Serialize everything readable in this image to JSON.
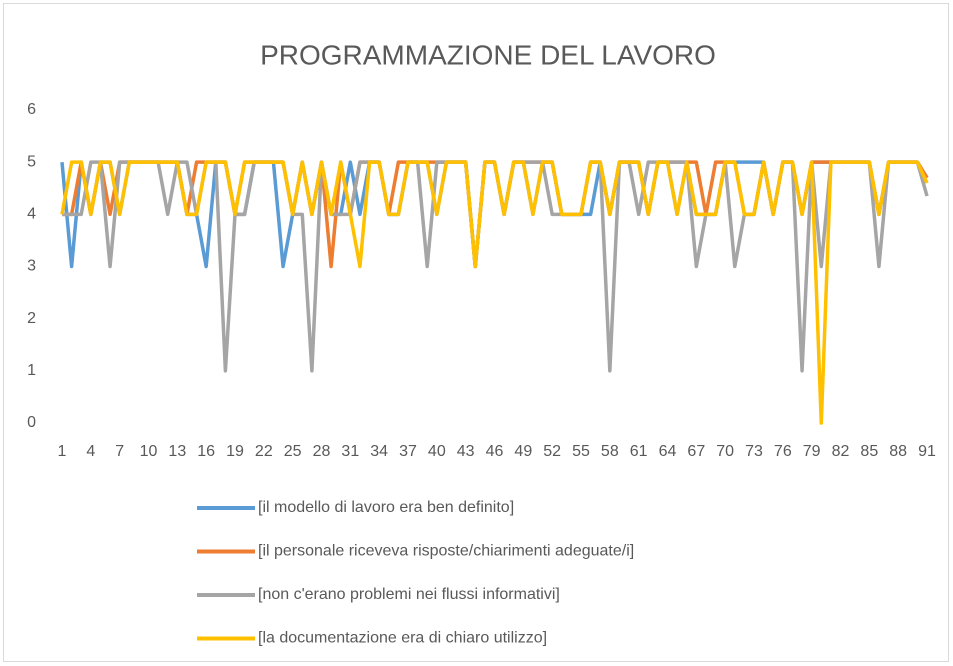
{
  "chart_data": {
    "type": "line",
    "title": "PROGRAMMAZIONE DEL LAVORO",
    "categories": [
      1,
      null,
      null,
      4,
      null,
      null,
      7,
      null,
      null,
      10,
      null,
      null,
      13,
      null,
      null,
      16,
      null,
      null,
      19,
      null,
      null,
      22,
      null,
      null,
      25,
      null,
      null,
      28,
      null,
      null,
      31,
      null,
      null,
      34,
      null,
      null,
      37,
      null,
      null,
      40,
      null,
      null,
      43,
      null,
      null,
      46,
      null,
      null,
      49,
      null,
      null,
      52,
      null,
      null,
      55,
      null,
      null,
      58,
      null,
      null,
      61,
      null,
      null,
      64,
      null,
      null,
      67,
      null,
      null,
      70,
      null,
      null,
      73,
      null,
      null,
      76,
      null,
      null,
      79,
      null,
      null,
      82,
      null,
      null,
      85,
      null,
      null,
      88,
      null,
      null,
      91
    ],
    "series": [
      {
        "name": "[il modello di lavoro era ben definito]",
        "color": "#5b9bd5",
        "values": [
          5,
          3,
          5,
          4,
          5,
          5,
          4,
          5,
          5,
          5,
          5,
          5,
          5,
          4,
          4,
          3,
          5,
          5,
          4,
          4,
          5,
          5,
          5,
          3,
          4,
          5,
          4,
          5,
          4,
          4,
          5,
          4,
          5,
          5,
          4,
          4,
          5,
          5,
          5,
          4,
          5,
          5,
          5,
          3,
          5,
          5,
          4,
          5,
          5,
          4,
          5,
          5,
          4,
          4,
          4,
          4,
          5,
          4,
          5,
          5,
          5,
          4,
          5,
          5,
          4,
          5,
          4,
          4,
          4,
          5,
          5,
          5,
          5,
          5,
          4,
          5,
          5,
          4,
          5,
          5,
          5,
          5,
          5,
          5,
          5,
          4,
          5,
          5,
          5,
          5,
          4.7
        ]
      },
      {
        "name": "[il personale riceveva risposte/chiarimenti adeguate/i]",
        "color": "#ed7d31",
        "values": [
          4,
          4,
          5,
          4,
          5,
          4,
          5,
          5,
          5,
          5,
          5,
          5,
          5,
          4,
          5,
          5,
          5,
          5,
          4,
          5,
          5,
          5,
          5,
          5,
          4,
          5,
          4,
          5,
          3,
          5,
          4,
          5,
          5,
          5,
          4,
          5,
          5,
          5,
          5,
          5,
          5,
          5,
          5,
          3,
          5,
          5,
          4,
          5,
          5,
          5,
          5,
          5,
          4,
          4,
          4,
          5,
          5,
          4,
          5,
          5,
          5,
          4,
          5,
          5,
          5,
          5,
          5,
          4,
          5,
          5,
          5,
          4,
          4,
          5,
          4,
          5,
          5,
          4,
          5,
          5,
          5,
          5,
          5,
          5,
          5,
          4,
          5,
          5,
          5,
          5,
          4.7
        ]
      },
      {
        "name": "[non c'erano problemi nei flussi informativi]",
        "color": "#a5a5a5",
        "values": [
          4,
          4,
          4,
          5,
          5,
          3,
          5,
          5,
          5,
          5,
          5,
          4,
          5,
          5,
          4,
          5,
          5,
          1,
          4,
          4,
          5,
          5,
          5,
          5,
          4,
          4,
          1,
          5,
          4,
          4,
          4,
          5,
          5,
          5,
          4,
          4,
          5,
          5,
          3,
          5,
          5,
          5,
          5,
          3,
          5,
          5,
          4,
          5,
          5,
          5,
          5,
          4,
          4,
          4,
          4,
          5,
          5,
          1,
          5,
          5,
          4,
          5,
          5,
          5,
          5,
          5,
          3,
          4,
          4,
          5,
          3,
          4,
          4,
          5,
          4,
          5,
          5,
          1,
          5,
          3,
          5,
          5,
          5,
          5,
          5,
          3,
          5,
          5,
          5,
          5,
          4.35
        ]
      },
      {
        "name": "[la documentazione era di chiaro utilizzo]",
        "color": "#ffc000",
        "values": [
          4,
          5,
          5,
          4,
          5,
          5,
          4,
          5,
          5,
          5,
          5,
          5,
          5,
          4,
          4,
          5,
          5,
          5,
          4,
          5,
          5,
          5,
          5,
          5,
          4,
          5,
          4,
          5,
          4,
          5,
          4,
          3,
          5,
          5,
          4,
          4,
          5,
          5,
          5,
          4,
          5,
          5,
          5,
          3,
          5,
          5,
          4,
          5,
          5,
          4,
          5,
          5,
          4,
          4,
          4,
          5,
          5,
          4,
          5,
          5,
          5,
          4,
          5,
          5,
          4,
          5,
          4,
          4,
          4,
          5,
          5,
          4,
          4,
          5,
          4,
          5,
          5,
          4,
          5,
          0,
          5,
          5,
          5,
          5,
          5,
          4,
          5,
          5,
          5,
          5,
          4.6
        ]
      }
    ],
    "ylim": [
      0,
      6
    ],
    "yticks": [
      0,
      1,
      2,
      3,
      4,
      5,
      6
    ],
    "grid": false,
    "legend": "bottom"
  }
}
